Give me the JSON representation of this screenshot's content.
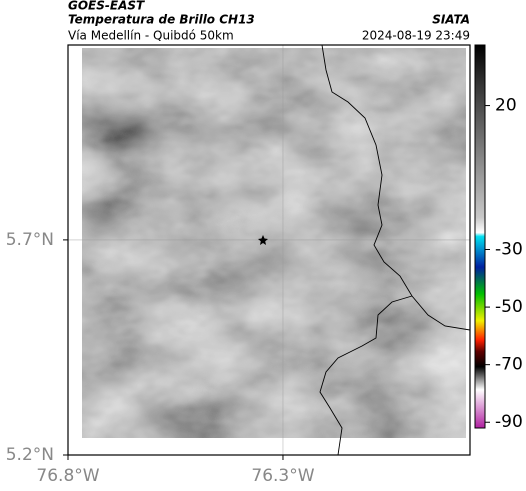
{
  "header": {
    "title": "GOES-EAST",
    "subtitle": "Temperatura de Brillo CH13",
    "source": "SIATA",
    "route": "Vía Medellín - Quibdó 50km",
    "timestamp": "2024-08-19 23:49"
  },
  "map": {
    "xlim": [
      -76.8,
      -75.865
    ],
    "ylim": [
      5.2,
      6.153
    ],
    "xticks": [
      {
        "value": -76.8,
        "label": "76.8°W"
      },
      {
        "value": -76.3,
        "label": "76.3°W"
      }
    ],
    "yticks": [
      {
        "value": 5.2,
        "label": "5.2°N"
      },
      {
        "value": 5.7,
        "label": "5.7°N"
      }
    ],
    "grid": true
  },
  "colorbar": {
    "lim": [
      40,
      -92
    ],
    "ticks": [
      20,
      -30,
      -50,
      -70,
      -90
    ]
  }
}
